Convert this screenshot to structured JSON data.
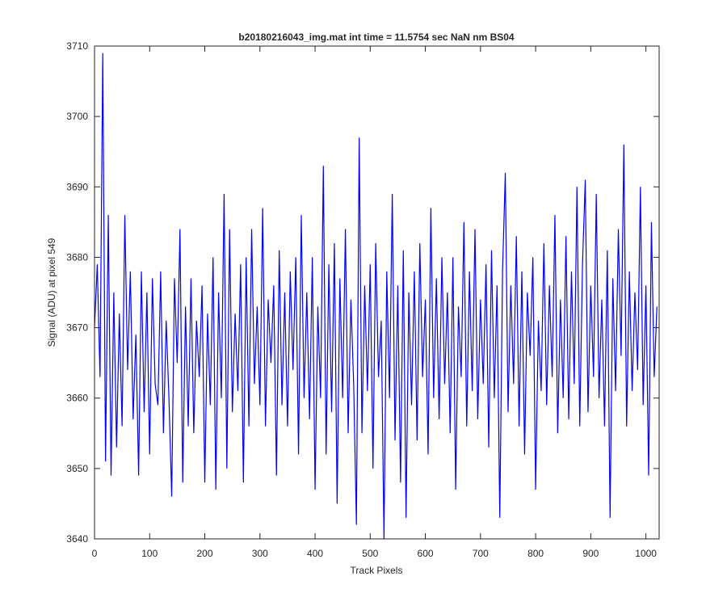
{
  "chart_data": {
    "type": "line",
    "title": "b20180216043_img.mat int time = 11.5754 sec  NaN nm BS04",
    "x_label": "Track Pixels",
    "y_label": "Signal (ADU) at pixel 549",
    "xlim": [
      0,
      1024
    ],
    "ylim": [
      3640,
      3710
    ],
    "xticks": [
      0,
      100,
      200,
      300,
      400,
      500,
      600,
      700,
      800,
      900,
      1000
    ],
    "yticks": [
      3640,
      3650,
      3660,
      3670,
      3680,
      3690,
      3700,
      3710
    ],
    "x": [
      0,
      5,
      10,
      15,
      20,
      25,
      30,
      35,
      40,
      45,
      50,
      55,
      60,
      65,
      70,
      75,
      80,
      85,
      90,
      95,
      100,
      105,
      110,
      115,
      120,
      125,
      130,
      135,
      140,
      145,
      150,
      155,
      160,
      165,
      170,
      175,
      180,
      185,
      190,
      195,
      200,
      205,
      210,
      215,
      220,
      225,
      230,
      235,
      240,
      245,
      250,
      255,
      260,
      265,
      270,
      275,
      280,
      285,
      290,
      295,
      300,
      305,
      310,
      315,
      320,
      325,
      330,
      335,
      340,
      345,
      350,
      355,
      360,
      365,
      370,
      375,
      380,
      385,
      390,
      395,
      400,
      405,
      410,
      415,
      420,
      425,
      430,
      435,
      440,
      445,
      450,
      455,
      460,
      465,
      470,
      475,
      480,
      485,
      490,
      495,
      500,
      505,
      510,
      515,
      520,
      525,
      530,
      535,
      540,
      545,
      550,
      555,
      560,
      565,
      570,
      575,
      580,
      585,
      590,
      595,
      600,
      605,
      610,
      615,
      620,
      625,
      630,
      635,
      640,
      645,
      650,
      655,
      660,
      665,
      670,
      675,
      680,
      685,
      690,
      695,
      700,
      705,
      710,
      715,
      720,
      725,
      730,
      735,
      740,
      745,
      750,
      755,
      760,
      765,
      770,
      775,
      780,
      785,
      790,
      795,
      800,
      805,
      810,
      815,
      820,
      825,
      830,
      835,
      840,
      845,
      850,
      855,
      860,
      865,
      870,
      875,
      880,
      885,
      890,
      895,
      900,
      905,
      910,
      915,
      920,
      925,
      930,
      935,
      940,
      945,
      950,
      955,
      960,
      965,
      970,
      975,
      980,
      985,
      990,
      995,
      1000,
      1005,
      1010,
      1015,
      1020
    ],
    "series": [
      {
        "name": "signal",
        "color": "#0000ff",
        "values": [
          3670,
          3679,
          3663,
          3709,
          3651,
          3686,
          3649,
          3675,
          3653,
          3672,
          3656,
          3686,
          3664,
          3678,
          3657,
          3669,
          3649,
          3678,
          3658,
          3675,
          3652,
          3677,
          3662,
          3659,
          3678,
          3655,
          3671,
          3660,
          3646,
          3677,
          3665,
          3684,
          3648,
          3673,
          3656,
          3677,
          3655,
          3671,
          3663,
          3676,
          3648,
          3672,
          3659,
          3680,
          3647,
          3675,
          3660,
          3689,
          3650,
          3684,
          3658,
          3672,
          3661,
          3679,
          3648,
          3680,
          3656,
          3684,
          3662,
          3673,
          3659,
          3687,
          3656,
          3674,
          3665,
          3676,
          3649,
          3681,
          3659,
          3675,
          3656,
          3678,
          3664,
          3680,
          3652,
          3686,
          3660,
          3675,
          3657,
          3680,
          3647,
          3673,
          3660,
          3693,
          3652,
          3679,
          3658,
          3682,
          3645,
          3677,
          3660,
          3684,
          3655,
          3674,
          3662,
          3642,
          3697,
          3655,
          3676,
          3661,
          3679,
          3650,
          3682,
          3663,
          3671,
          3640,
          3678,
          3660,
          3689,
          3654,
          3676,
          3648,
          3681,
          3643,
          3675,
          3659,
          3678,
          3654,
          3682,
          3663,
          3674,
          3652,
          3687,
          3660,
          3677,
          3657,
          3680,
          3662,
          3675,
          3655,
          3680,
          3647,
          3673,
          3663,
          3685,
          3656,
          3678,
          3661,
          3684,
          3657,
          3674,
          3662,
          3679,
          3653,
          3681,
          3660,
          3676,
          3643,
          3678,
          3692,
          3658,
          3676,
          3662,
          3683,
          3656,
          3678,
          3652,
          3675,
          3666,
          3680,
          3647,
          3671,
          3661,
          3682,
          3659,
          3676,
          3663,
          3686,
          3655,
          3674,
          3660,
          3683,
          3657,
          3678,
          3662,
          3690,
          3656,
          3679,
          3691,
          3658,
          3676,
          3663,
          3689,
          3660,
          3674,
          3656,
          3681,
          3643,
          3677,
          3661,
          3684,
          3666,
          3696,
          3656,
          3678,
          3661,
          3675,
          3664,
          3690,
          3659,
          3676,
          3649,
          3685,
          3663,
          3673
        ]
      }
    ]
  }
}
